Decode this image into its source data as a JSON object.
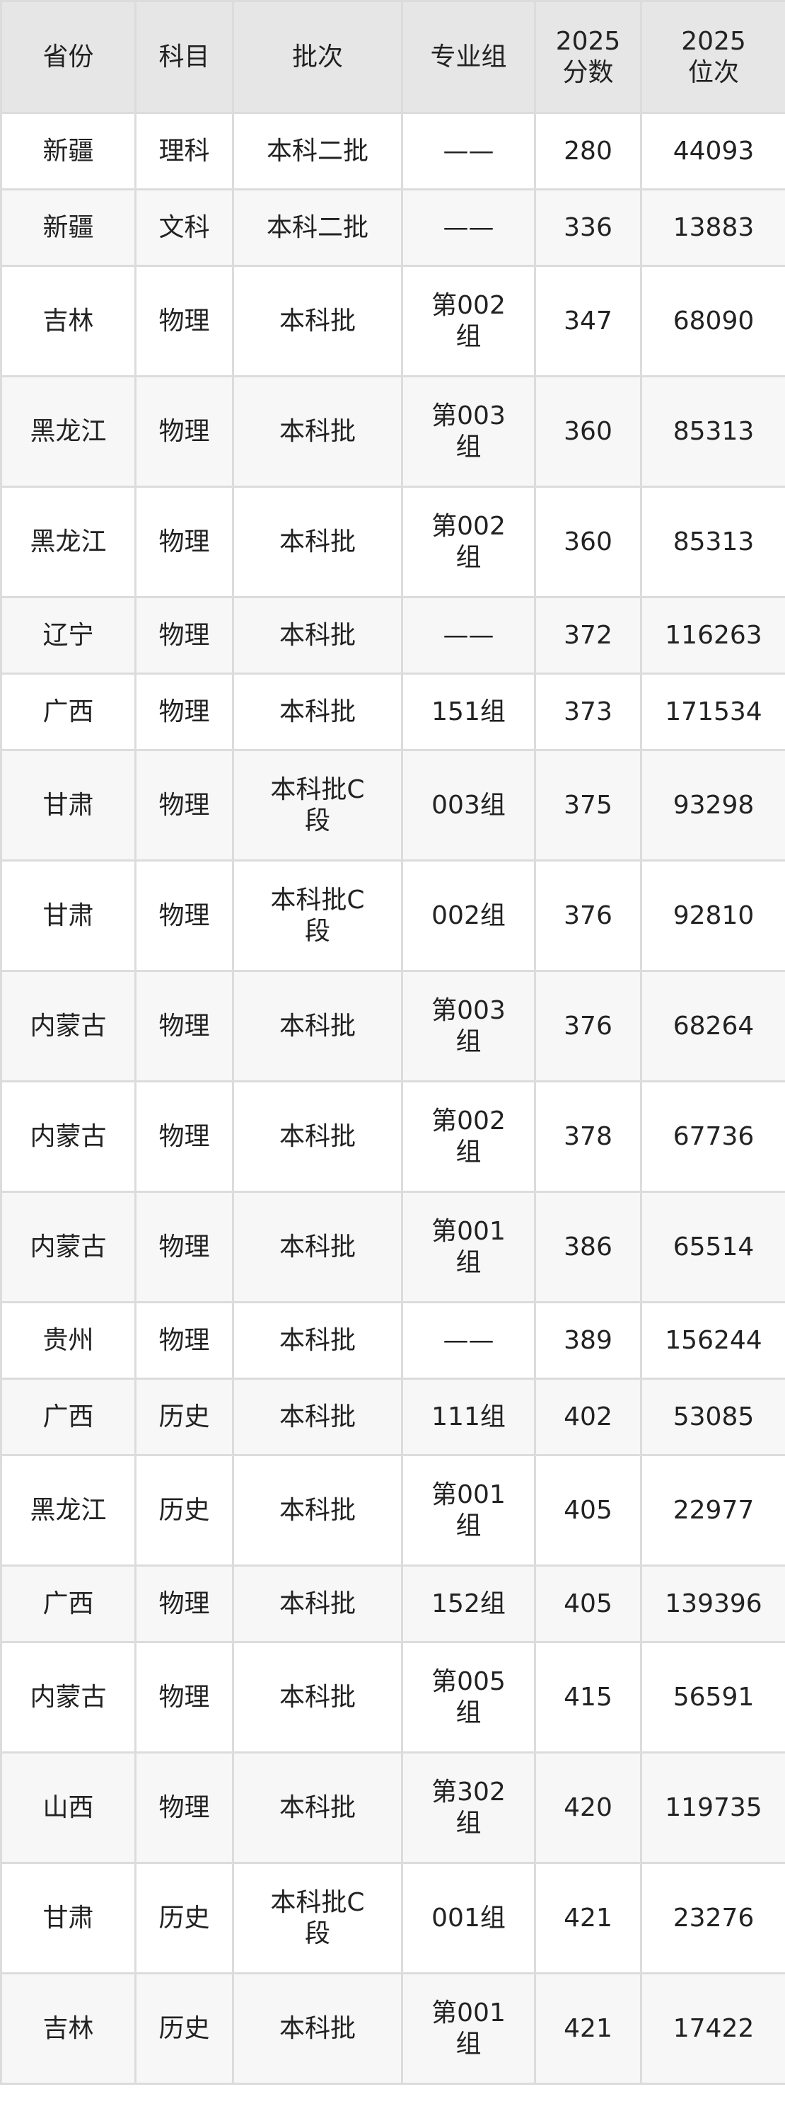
{
  "headers": [
    "省份",
    "科目",
    "批次",
    "专业组",
    "2025分数",
    "2025位次"
  ],
  "rows": [
    [
      "新疆",
      "理科",
      "本科二批",
      "——",
      "280",
      "44093"
    ],
    [
      "新疆",
      "文科",
      "本科二批",
      "——",
      "336",
      "13883"
    ],
    [
      "吉林",
      "物理",
      "本科批",
      "第002组",
      "347",
      "68090"
    ],
    [
      "黑龙江",
      "物理",
      "本科批",
      "第003组",
      "360",
      "85313"
    ],
    [
      "黑龙江",
      "物理",
      "本科批",
      "第002组",
      "360",
      "85313"
    ],
    [
      "辽宁",
      "物理",
      "本科批",
      "——",
      "372",
      "116263"
    ],
    [
      "广西",
      "物理",
      "本科批",
      "151组",
      "373",
      "171534"
    ],
    [
      "甘肃",
      "物理",
      "本科批C段",
      "003组",
      "375",
      "93298"
    ],
    [
      "甘肃",
      "物理",
      "本科批C段",
      "002组",
      "376",
      "92810"
    ],
    [
      "内蒙古",
      "物理",
      "本科批",
      "第003组",
      "376",
      "68264"
    ],
    [
      "内蒙古",
      "物理",
      "本科批",
      "第002组",
      "378",
      "67736"
    ],
    [
      "内蒙古",
      "物理",
      "本科批",
      "第001组",
      "386",
      "65514"
    ],
    [
      "贵州",
      "物理",
      "本科批",
      "——",
      "389",
      "156244"
    ],
    [
      "广西",
      "历史",
      "本科批",
      "111组",
      "402",
      "53085"
    ],
    [
      "黑龙江",
      "历史",
      "本科批",
      "第001组",
      "405",
      "22977"
    ],
    [
      "广西",
      "物理",
      "本科批",
      "152组",
      "405",
      "139396"
    ],
    [
      "内蒙古",
      "物理",
      "本科批",
      "第005组",
      "415",
      "56591"
    ],
    [
      "山西",
      "物理",
      "本科批",
      "第302组",
      "420",
      "119735"
    ],
    [
      "甘肃",
      "历史",
      "本科批C段",
      "001组",
      "421",
      "23276"
    ],
    [
      "吉林",
      "历史",
      "本科批",
      "第001组",
      "421",
      "17422"
    ]
  ]
}
